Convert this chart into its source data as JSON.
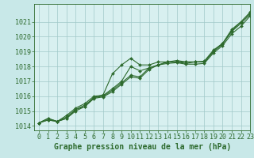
{
  "background_color": "#c8e8e8",
  "plot_background": "#d8f0f0",
  "grid_color": "#a0c8c8",
  "line_color": "#2d6a2d",
  "xlabel": "Graphe pression niveau de la mer (hPa)",
  "xlabel_fontsize": 7,
  "xlim": [
    -0.5,
    23
  ],
  "ylim": [
    1013.7,
    1022.2
  ],
  "yticks": [
    1014,
    1015,
    1016,
    1017,
    1018,
    1019,
    1020,
    1021
  ],
  "xticks": [
    0,
    1,
    2,
    3,
    4,
    5,
    6,
    7,
    8,
    9,
    10,
    11,
    12,
    13,
    14,
    15,
    16,
    17,
    18,
    19,
    20,
    21,
    22,
    23
  ],
  "series": [
    [
      1014.2,
      1014.4,
      1014.3,
      1014.5,
      1015.1,
      1015.3,
      1015.9,
      1016.1,
      1017.5,
      1018.1,
      1018.55,
      1018.1,
      1018.1,
      1018.3,
      1018.3,
      1018.4,
      1018.3,
      1018.3,
      1018.35,
      1019.1,
      1019.55,
      1020.5,
      1021.0,
      1021.65
    ],
    [
      1014.2,
      1014.5,
      1014.3,
      1014.7,
      1015.2,
      1015.5,
      1016.0,
      1016.05,
      1016.5,
      1017.0,
      1018.0,
      1017.7,
      1017.9,
      1018.1,
      1018.2,
      1018.25,
      1018.15,
      1018.15,
      1018.2,
      1018.9,
      1019.4,
      1020.2,
      1020.7,
      1021.4
    ],
    [
      1014.2,
      1014.5,
      1014.3,
      1014.5,
      1015.0,
      1015.3,
      1015.85,
      1015.95,
      1016.3,
      1016.8,
      1017.3,
      1017.2,
      1017.8,
      1018.1,
      1018.3,
      1018.3,
      1018.3,
      1018.3,
      1018.3,
      1019.0,
      1019.5,
      1020.4,
      1021.0,
      1021.6
    ],
    [
      1014.2,
      1014.4,
      1014.3,
      1014.6,
      1015.1,
      1015.4,
      1015.9,
      1016.0,
      1016.4,
      1016.9,
      1017.4,
      1017.3,
      1017.9,
      1018.1,
      1018.3,
      1018.3,
      1018.2,
      1018.3,
      1018.3,
      1019.0,
      1019.55,
      1020.35,
      1020.9,
      1021.5
    ]
  ],
  "marker": "D",
  "marker_size": 2.0,
  "linewidth": 0.8,
  "tick_fontsize": 6.0,
  "ytick_fontsize": 6.0
}
